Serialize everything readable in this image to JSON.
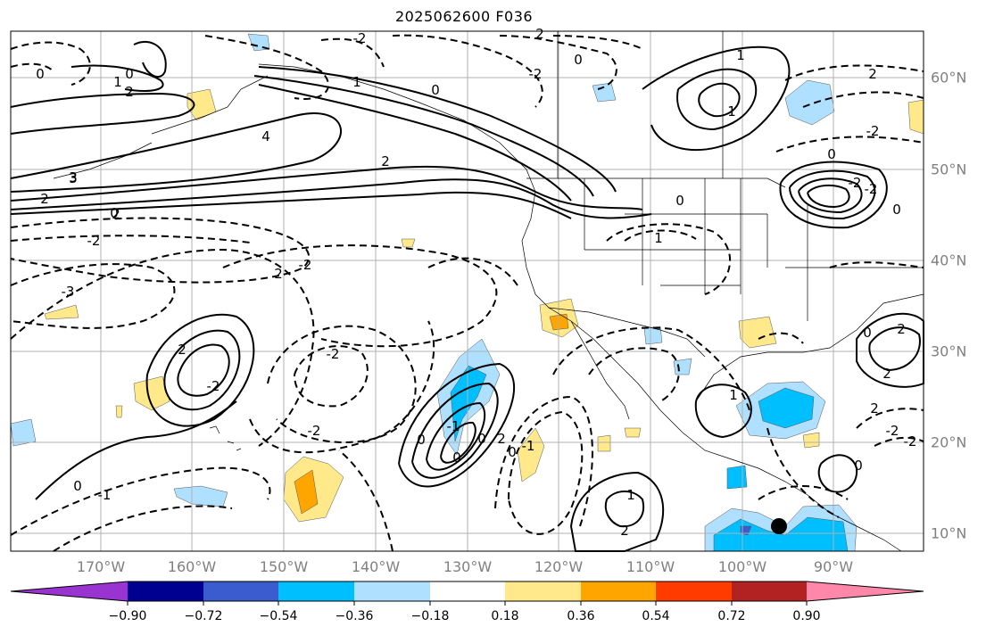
{
  "title": "2025062600 F036",
  "lon_labels": [
    "170°W",
    "160°W",
    "150°W",
    "140°W",
    "130°W",
    "120°W",
    "110°W",
    "100°W",
    "90°W"
  ],
  "lat_labels": [
    "60°N",
    "50°N",
    "40°N",
    "30°N",
    "20°N",
    "10°N"
  ],
  "colorbar": {
    "ticks": [
      "−0.90",
      "−0.72",
      "−0.54",
      "−0.36",
      "−0.18",
      "0.18",
      "0.36",
      "0.54",
      "0.72",
      "0.90"
    ],
    "colors": [
      "#9a34d0",
      "#000090",
      "#3a5cce",
      "#00bfff",
      "#b0e0ff",
      "#ffffff",
      "#ffe98a",
      "#ffa500",
      "#ff3b00",
      "#b22222",
      "#ff88aa"
    ]
  },
  "contour_labels": [
    "3",
    "2",
    "2",
    "0",
    "0",
    "1",
    "2",
    "1",
    "-2",
    "2",
    "-2",
    "0",
    "0",
    "1",
    "1",
    "2",
    "-2",
    "-2",
    "-2",
    "0",
    "0",
    "4",
    "2",
    "3",
    "-2",
    "0",
    "-2",
    "2",
    "0",
    "1",
    "-2",
    "2",
    "-2",
    "-3",
    "2",
    "0",
    "2",
    "-2",
    "-1",
    "0",
    "2",
    "0",
    "-1",
    "0",
    "0",
    "0",
    "1",
    "2",
    "1",
    "2",
    "-2",
    "-2",
    "0",
    "-1"
  ],
  "marker": "station-dot"
}
